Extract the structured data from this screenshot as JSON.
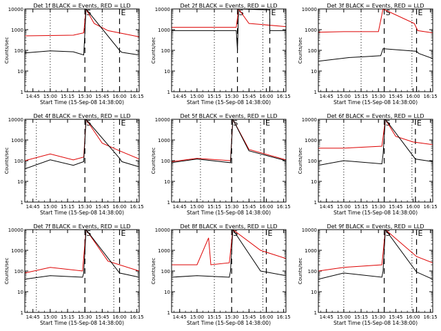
{
  "ylabel": "Counts/sec",
  "xlabel": "Start Time (15-Sep-08 14:38:00)",
  "x_ticks": [
    "14:45",
    "15:00",
    "15:15",
    "15:30",
    "15:45",
    "16:00",
    "16:15"
  ],
  "y_ticks": [
    "1",
    "10",
    "100",
    "1000",
    "10000"
  ],
  "colors": {
    "events": "#000000",
    "lld": "#dd0000",
    "axes": "#000000"
  },
  "chart_data": [
    {
      "type": "line",
      "title": "Det 1f BLACK = Events, RED = LLD",
      "marks": {
        "S": "15:30",
        "E": "16:00"
      },
      "dotted": [
        "15:00",
        "15:45"
      ],
      "xlim": [
        "14:38",
        "16:17"
      ],
      "ylim": [
        1,
        10000
      ],
      "yscale": "log",
      "series": [
        {
          "name": "Events",
          "points": [
            [
              "14:38",
              75
            ],
            [
              "15:00",
              95
            ],
            [
              "15:20",
              85
            ],
            [
              "15:29",
              60
            ],
            [
              "15:31",
              10000
            ],
            [
              "16:00",
              100
            ],
            [
              "16:02",
              80
            ],
            [
              "16:17",
              60
            ]
          ]
        },
        {
          "name": "LLD",
          "points": [
            [
              "14:38",
              500
            ],
            [
              "15:00",
              520
            ],
            [
              "15:20",
              540
            ],
            [
              "15:29",
              700
            ],
            [
              "15:31",
              10000
            ],
            [
              "15:38",
              2000
            ],
            [
              "15:50",
              900
            ],
            [
              "16:17",
              450
            ]
          ]
        }
      ]
    },
    {
      "type": "line",
      "title": "Det 2f BLACK = Events, RED = LLD",
      "marks": {
        "S": "15:35",
        "E": "16:03"
      },
      "dotted": [
        "15:15",
        "15:57"
      ],
      "xlim": [
        "14:38",
        "16:17"
      ],
      "ylim": [
        1,
        10000
      ],
      "yscale": "log",
      "series": [
        {
          "name": "Events",
          "points": [
            [
              "14:38",
              900
            ],
            [
              "15:34",
              900
            ],
            [
              "15:35",
              100
            ],
            [
              "15:36",
              10000
            ],
            [
              "16:03",
              9000
            ],
            [
              "16:03",
              900
            ],
            [
              "16:17",
              900
            ]
          ]
        },
        {
          "name": "LLD",
          "points": [
            [
              "14:38",
              1300
            ],
            [
              "15:34",
              1300
            ],
            [
              "15:36",
              10000
            ],
            [
              "15:45",
              2000
            ],
            [
              "16:17",
              1400
            ]
          ]
        }
      ]
    },
    {
      "type": "line",
      "title": "Det 3f BLACK = Events, RED = LLD",
      "marks": {
        "S": "15:35",
        "E": "16:03"
      },
      "dotted": [
        "15:15",
        "15:59"
      ],
      "xlim": [
        "14:38",
        "16:17"
      ],
      "ylim": [
        1,
        10000
      ],
      "yscale": "log",
      "series": [
        {
          "name": "Events",
          "points": [
            [
              "14:38",
              30
            ],
            [
              "15:05",
              45
            ],
            [
              "15:20",
              50
            ],
            [
              "15:32",
              55
            ],
            [
              "15:34",
              120
            ],
            [
              "16:03",
              90
            ],
            [
              "16:05",
              70
            ],
            [
              "16:17",
              40
            ]
          ]
        },
        {
          "name": "LLD",
          "points": [
            [
              "14:38",
              750
            ],
            [
              "15:00",
              800
            ],
            [
              "15:30",
              800
            ],
            [
              "15:34",
              10000
            ],
            [
              "16:01",
              2000
            ],
            [
              "16:04",
              900
            ],
            [
              "16:17",
              700
            ]
          ]
        }
      ]
    },
    {
      "type": "line",
      "title": "Det 4f BLACK = Events, RED = LLD",
      "marks": {
        "S": "15:30",
        "E": "16:00"
      },
      "dotted": [
        "14:48",
        "15:55"
      ],
      "xlim": [
        "14:38",
        "16:17"
      ],
      "ylim": [
        1,
        10000
      ],
      "yscale": "log",
      "series": [
        {
          "name": "Events",
          "points": [
            [
              "14:38",
              40
            ],
            [
              "15:00",
              110
            ],
            [
              "15:20",
              60
            ],
            [
              "15:29",
              90
            ],
            [
              "15:31",
              10000
            ],
            [
              "16:00",
              130
            ],
            [
              "16:02",
              90
            ],
            [
              "16:17",
              50
            ]
          ]
        },
        {
          "name": "LLD",
          "points": [
            [
              "14:38",
              100
            ],
            [
              "15:00",
              210
            ],
            [
              "15:20",
              110
            ],
            [
              "15:29",
              150
            ],
            [
              "15:31",
              10000
            ],
            [
              "15:45",
              700
            ],
            [
              "16:00",
              300
            ],
            [
              "16:17",
              120
            ]
          ]
        }
      ]
    },
    {
      "type": "line",
      "title": "Det 5f BLACK = Events, RED = LLD",
      "marks": {
        "S": "15:30",
        "E": "15:58"
      },
      "dotted": [
        "15:03",
        "15:55"
      ],
      "xlim": [
        "14:38",
        "16:17"
      ],
      "ylim": [
        1,
        10000
      ],
      "yscale": "log",
      "series": [
        {
          "name": "Events",
          "points": [
            [
              "14:38",
              80
            ],
            [
              "15:00",
              120
            ],
            [
              "15:29",
              80
            ],
            [
              "15:31",
              10000
            ],
            [
              "15:45",
              300
            ],
            [
              "16:17",
              100
            ]
          ]
        },
        {
          "name": "LLD",
          "points": [
            [
              "14:38",
              90
            ],
            [
              "15:00",
              130
            ],
            [
              "15:29",
              100
            ],
            [
              "15:31",
              10000
            ],
            [
              "15:45",
              350
            ],
            [
              "16:17",
              110
            ]
          ]
        }
      ]
    },
    {
      "type": "line",
      "title": "Det 6f BLACK = Events, RED = LLD",
      "marks": {
        "S": "15:35",
        "E": "16:02"
      },
      "dotted": [
        "15:00",
        "15:59"
      ],
      "xlim": [
        "14:38",
        "16:17"
      ],
      "ylim": [
        1,
        10000
      ],
      "yscale": "log",
      "series": [
        {
          "name": "Events",
          "points": [
            [
              "14:38",
              60
            ],
            [
              "15:00",
              100
            ],
            [
              "15:33",
              70
            ],
            [
              "15:34",
              200
            ],
            [
              "15:36",
              10000
            ],
            [
              "16:02",
              120
            ],
            [
              "16:17",
              90
            ]
          ]
        },
        {
          "name": "LLD",
          "points": [
            [
              "14:38",
              400
            ],
            [
              "15:00",
              400
            ],
            [
              "15:33",
              500
            ],
            [
              "15:36",
              10000
            ],
            [
              "15:45",
              1500
            ],
            [
              "16:00",
              800
            ],
            [
              "16:17",
              600
            ]
          ]
        }
      ]
    },
    {
      "type": "line",
      "title": "Det 7f BLACK = Events, RED = LLD",
      "marks": {
        "S": "15:30",
        "E": "16:00"
      },
      "dotted": [
        "14:48",
        "15:55"
      ],
      "xlim": [
        "14:38",
        "16:17"
      ],
      "ylim": [
        1,
        10000
      ],
      "yscale": "log",
      "series": [
        {
          "name": "Events",
          "points": [
            [
              "14:38",
              40
            ],
            [
              "15:00",
              60
            ],
            [
              "15:28",
              50
            ],
            [
              "15:29",
              80
            ],
            [
              "15:31",
              10000
            ],
            [
              "16:00",
              80
            ],
            [
              "16:17",
              50
            ]
          ]
        },
        {
          "name": "LLD",
          "points": [
            [
              "14:38",
              80
            ],
            [
              "15:00",
              150
            ],
            [
              "15:28",
              100
            ],
            [
              "15:31",
              10000
            ],
            [
              "15:50",
              300
            ],
            [
              "16:17",
              100
            ]
          ]
        }
      ]
    },
    {
      "type": "line",
      "title": "Det 8f BLACK = Events, RED = LLD",
      "marks": {
        "S": "15:30",
        "E": "16:00"
      },
      "dotted": [
        "15:15",
        "15:57"
      ],
      "xlim": [
        "14:38",
        "16:17"
      ],
      "ylim": [
        1,
        10000
      ],
      "yscale": "log",
      "series": [
        {
          "name": "Events",
          "points": [
            [
              "14:38",
              50
            ],
            [
              "15:00",
              60
            ],
            [
              "15:28",
              50
            ],
            [
              "15:29",
              100
            ],
            [
              "15:31",
              10000
            ],
            [
              "15:55",
              100
            ],
            [
              "16:17",
              60
            ]
          ]
        },
        {
          "name": "LLD",
          "points": [
            [
              "14:38",
              200
            ],
            [
              "15:00",
              200
            ],
            [
              "15:10",
              4000
            ],
            [
              "15:12",
              200
            ],
            [
              "15:28",
              250
            ],
            [
              "15:31",
              10000
            ],
            [
              "15:55",
              1000
            ],
            [
              "16:17",
              400
            ]
          ]
        }
      ]
    },
    {
      "type": "line",
      "title": "Det 9f BLACK = Events, RED = LLD",
      "marks": {
        "S": "15:35",
        "E": "16:03"
      },
      "dotted": [
        "15:00",
        "15:59"
      ],
      "xlim": [
        "14:38",
        "16:17"
      ],
      "ylim": [
        1,
        10000
      ],
      "yscale": "log",
      "series": [
        {
          "name": "Events",
          "points": [
            [
              "14:38",
              40
            ],
            [
              "15:00",
              80
            ],
            [
              "15:33",
              50
            ],
            [
              "15:34",
              100
            ],
            [
              "15:36",
              10000
            ],
            [
              "16:03",
              90
            ],
            [
              "16:17",
              40
            ]
          ]
        },
        {
          "name": "LLD",
          "points": [
            [
              "14:38",
              100
            ],
            [
              "15:00",
              150
            ],
            [
              "15:33",
              200
            ],
            [
              "15:36",
              10000
            ],
            [
              "16:03",
              500
            ],
            [
              "16:17",
              250
            ]
          ]
        }
      ]
    }
  ]
}
